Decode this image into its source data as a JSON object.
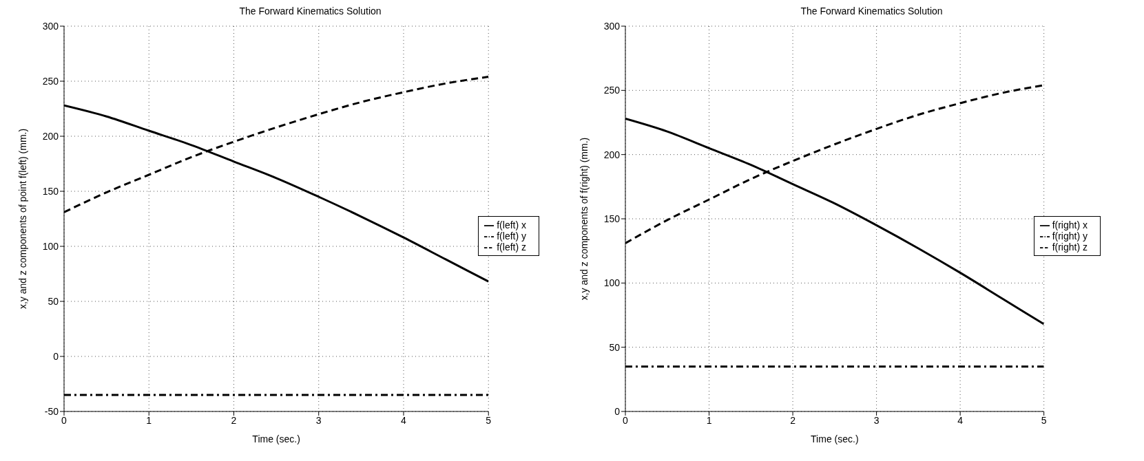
{
  "chart_data": [
    {
      "type": "line",
      "title": "The Forward Kinematics Solution",
      "xlabel": "Time (sec.)",
      "ylabel": "x,y and z components of point f(left)  (mm.)",
      "x": [
        0,
        0.5,
        1,
        1.5,
        2,
        2.5,
        3,
        3.5,
        4,
        4.5,
        5
      ],
      "xlim": [
        0,
        5
      ],
      "xticks": [
        0,
        1,
        2,
        3,
        4,
        5
      ],
      "ylim": [
        -50,
        300
      ],
      "yticks": [
        -50,
        0,
        50,
        100,
        150,
        200,
        250,
        300
      ],
      "grid": true,
      "legend": "right",
      "marker": "none",
      "series": [
        {
          "name": "f(left) x",
          "color": "#000000",
          "line_style": "solid",
          "values": [
            228,
            218,
            205,
            192,
            177,
            162,
            145,
            127,
            108,
            88,
            68
          ]
        },
        {
          "name": "f(left) z",
          "color": "#000000",
          "line_style": "dashed",
          "values": [
            131,
            149,
            165,
            181,
            195,
            208,
            220,
            231,
            240,
            248,
            254
          ]
        },
        {
          "name": "f(left) y",
          "color": "#000000",
          "line_style": "dashdot",
          "values": [
            -35,
            -35,
            -35,
            -35,
            -35,
            -35,
            -35,
            -35,
            -35,
            -35,
            -35
          ]
        }
      ]
    },
    {
      "type": "line",
      "title": "The Forward Kinematics Solution",
      "xlabel": "Time (sec.)",
      "ylabel": "x,y and z components of f(right)  (mm.)",
      "x": [
        0,
        0.5,
        1,
        1.5,
        2,
        2.5,
        3,
        3.5,
        4,
        4.5,
        5
      ],
      "xlim": [
        0,
        5
      ],
      "xticks": [
        0,
        1,
        2,
        3,
        4,
        5
      ],
      "ylim": [
        0,
        300
      ],
      "yticks": [
        0,
        50,
        100,
        150,
        200,
        250,
        300
      ],
      "grid": true,
      "legend": "right",
      "marker": "none",
      "series": [
        {
          "name": "f(right) x",
          "color": "#000000",
          "line_style": "solid",
          "values": [
            228,
            218,
            205,
            192,
            177,
            162,
            145,
            127,
            108,
            88,
            68
          ]
        },
        {
          "name": "f(right) z",
          "color": "#000000",
          "line_style": "dashed",
          "values": [
            131,
            149,
            165,
            181,
            195,
            208,
            220,
            231,
            240,
            248,
            254
          ]
        },
        {
          "name": "f(right) y",
          "color": "#000000",
          "line_style": "dashdot",
          "values": [
            35,
            35,
            35,
            35,
            35,
            35,
            35,
            35,
            35,
            35,
            35
          ]
        }
      ]
    }
  ]
}
